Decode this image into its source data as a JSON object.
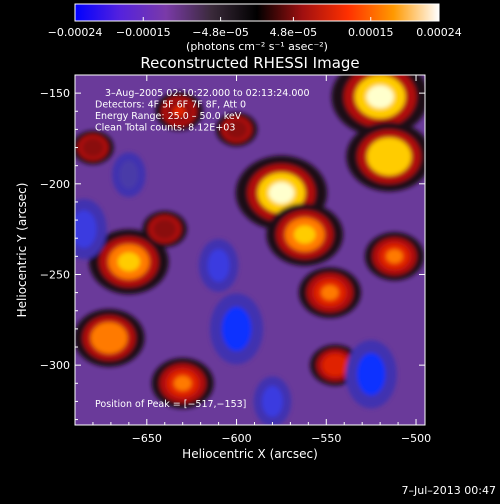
{
  "chart_data": {
    "type": "heatmap",
    "title": "Reconstructed RHESSI Image",
    "xlabel": "Heliocentric X (arcsec)",
    "ylabel": "Heliocentric Y (arcsec)",
    "xlim": [
      -690,
      -495
    ],
    "ylim": [
      -333,
      -140
    ],
    "x_ticks": [
      -650,
      -600,
      -550,
      -500
    ],
    "x_tick_labels": [
      "−650",
      "−600",
      "−550",
      "−500"
    ],
    "y_ticks": [
      -150,
      -200,
      -250,
      -300
    ],
    "y_tick_labels": [
      "−150",
      "−200",
      "−250",
      "−300"
    ],
    "colorbar": {
      "min": -0.00024,
      "max": 0.00024,
      "ticks": [
        -0.00024,
        -0.00015,
        -4.8e-05,
        4.8e-05,
        0.00015,
        0.00024
      ],
      "tick_labels": [
        "−0.00024",
        "−0.00015",
        "−4.8e−05",
        "4.8e−05",
        "0.00015",
        "0.00024"
      ],
      "units": "(photons cm⁻² s⁻¹ asec⁻²)",
      "colors": [
        "#0000ff",
        "#5522dd",
        "#7a3aa8",
        "#3a2a3a",
        "#000000",
        "#a01010",
        "#ff3000",
        "#ff9900",
        "#ffffff"
      ]
    },
    "annotations": [
      "3–Aug–2005 02:10:22.000 to 02:13:24.000",
      "Detectors: 4F 5F 6F 7F 8F, Att 0",
      "Energy Range: 25.0 – 50.0 keV",
      "Clean    Total counts: 8.12E+03"
    ],
    "peak_label": "Position of Peak = [−517,−153]",
    "peak": [
      -517,
      -153
    ],
    "sources": [
      {
        "x": -520,
        "y": -152,
        "value": 0.00024
      },
      {
        "x": -515,
        "y": -185,
        "value": 0.0002
      },
      {
        "x": -575,
        "y": -205,
        "value": 0.00022
      },
      {
        "x": -562,
        "y": -228,
        "value": 0.00017
      },
      {
        "x": -548,
        "y": -260,
        "value": 0.00012
      },
      {
        "x": -512,
        "y": -240,
        "value": 0.00011
      },
      {
        "x": -660,
        "y": -243,
        "value": 0.00018
      },
      {
        "x": -671,
        "y": -285,
        "value": 0.00015
      },
      {
        "x": -630,
        "y": -310,
        "value": 0.00012
      },
      {
        "x": -640,
        "y": -225,
        "value": 6e-05
      },
      {
        "x": -632,
        "y": -160,
        "value": 7e-05
      },
      {
        "x": -600,
        "y": -170,
        "value": 5e-05
      },
      {
        "x": -680,
        "y": -180,
        "value": 5e-05
      },
      {
        "x": -545,
        "y": -300,
        "value": 8e-05
      },
      {
        "x": -600,
        "y": -280,
        "value": -0.00018
      },
      {
        "x": -525,
        "y": -305,
        "value": -0.00017
      },
      {
        "x": -580,
        "y": -320,
        "value": -0.0001
      },
      {
        "x": -610,
        "y": -245,
        "value": -0.00011
      },
      {
        "x": -685,
        "y": -225,
        "value": -0.00014
      },
      {
        "x": -660,
        "y": -195,
        "value": -8e-05
      }
    ]
  },
  "timestamp": "7–Jul–2013 00:47"
}
